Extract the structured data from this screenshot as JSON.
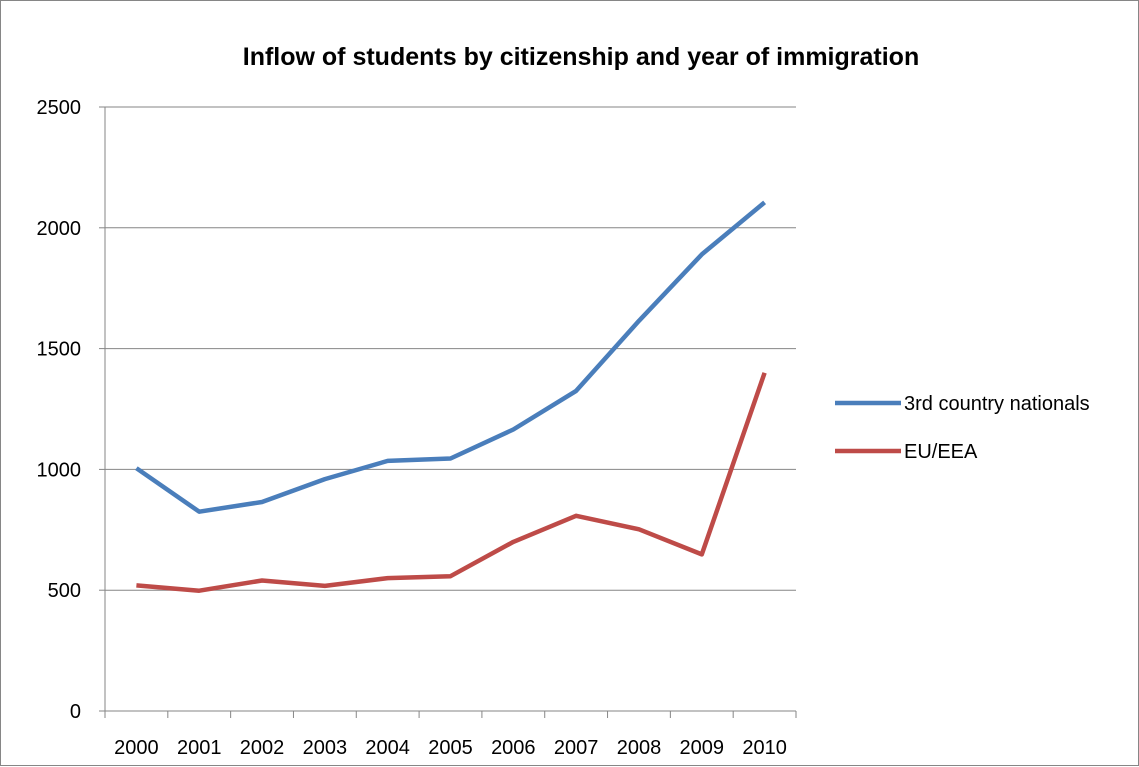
{
  "chart_data": {
    "type": "line",
    "title": "Inflow of students by citizenship and year of immigration",
    "xlabel": "",
    "ylabel": "",
    "categories": [
      "2000",
      "2001",
      "2002",
      "2003",
      "2004",
      "2005",
      "2006",
      "2007",
      "2008",
      "2009",
      "2010"
    ],
    "ylim": [
      0,
      2500
    ],
    "yticks": [
      0,
      500,
      1000,
      1500,
      2000,
      2500
    ],
    "grid": true,
    "legend_position": "right",
    "series": [
      {
        "name": "3rd country nationals",
        "color": "#4a7ebb",
        "values": [
          1005,
          825,
          865,
          960,
          1035,
          1045,
          1165,
          1325,
          1615,
          1890,
          2105
        ]
      },
      {
        "name": "EU/EEA",
        "color": "#be4b48",
        "values": [
          520,
          498,
          540,
          518,
          550,
          558,
          700,
          808,
          752,
          648,
          1400
        ]
      }
    ]
  }
}
